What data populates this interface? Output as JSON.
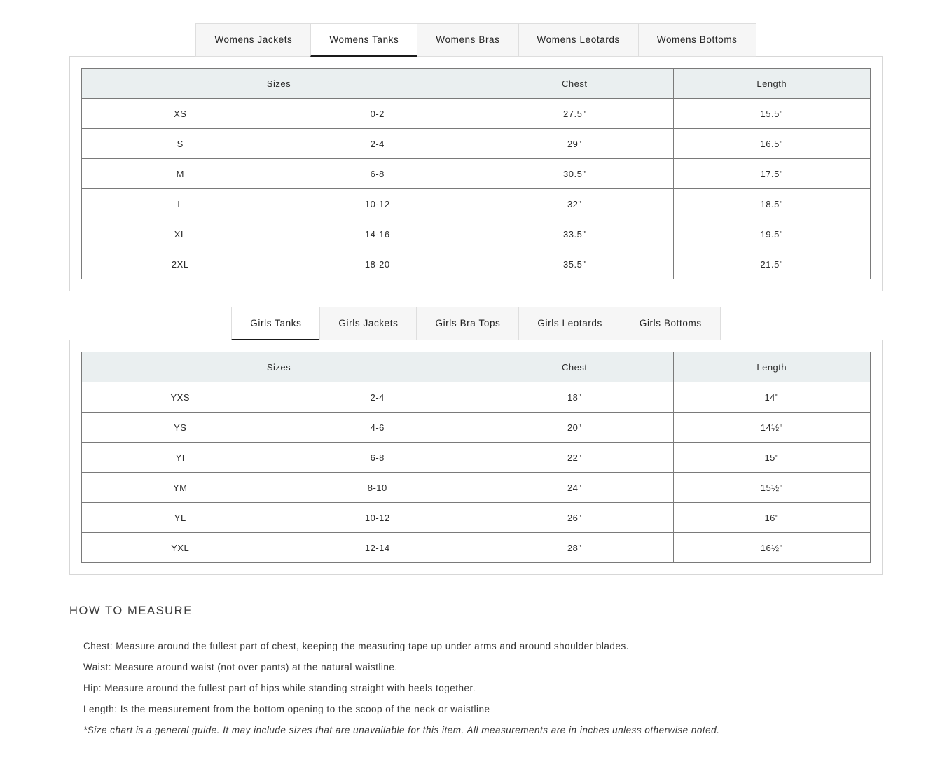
{
  "colors": {
    "header_cell_bg": "#eaeff0",
    "table_border": "#7a7a7a",
    "panel_border": "#d7d7d7",
    "tab_inactive_bg": "#f6f6f6",
    "tab_border": "#dedede",
    "tab_active_underline": "#1a1a1a",
    "text": "#2e2e2e"
  },
  "womens": {
    "tabs": [
      {
        "label": "Womens Jackets",
        "active": false
      },
      {
        "label": "Womens Tanks",
        "active": true
      },
      {
        "label": "Womens Bras",
        "active": false
      },
      {
        "label": "Womens Leotards",
        "active": false
      },
      {
        "label": "Womens Bottoms",
        "active": false
      }
    ],
    "table": {
      "headers": [
        "Sizes",
        "Chest",
        "Length"
      ],
      "rows": [
        [
          "XS",
          "0-2",
          "27.5\"",
          "15.5\""
        ],
        [
          "S",
          "2-4",
          "29\"",
          "16.5\""
        ],
        [
          "M",
          "6-8",
          "30.5\"",
          "17.5\""
        ],
        [
          "L",
          "10-12",
          "32\"",
          "18.5\""
        ],
        [
          "XL",
          "14-16",
          "33.5\"",
          "19.5\""
        ],
        [
          "2XL",
          "18-20",
          "35.5\"",
          "21.5\""
        ]
      ]
    }
  },
  "girls": {
    "tabs": [
      {
        "label": "Girls Tanks",
        "active": true
      },
      {
        "label": "Girls Jackets",
        "active": false
      },
      {
        "label": "Girls Bra Tops",
        "active": false
      },
      {
        "label": "Girls Leotards",
        "active": false
      },
      {
        "label": "Girls Bottoms",
        "active": false
      }
    ],
    "table": {
      "headers": [
        "Sizes",
        "Chest",
        "Length"
      ],
      "rows": [
        [
          "YXS",
          "2-4",
          "18\"",
          "14\""
        ],
        [
          "YS",
          "4-6",
          "20\"",
          "14½\""
        ],
        [
          "YI",
          "6-8",
          "22\"",
          "15\""
        ],
        [
          "YM",
          "8-10",
          "24\"",
          "15½\""
        ],
        [
          "YL",
          "10-12",
          "26\"",
          "16\""
        ],
        [
          "YXL",
          "12-14",
          "28\"",
          "16½\""
        ]
      ]
    }
  },
  "how_to_measure": {
    "title": "HOW TO MEASURE",
    "lines": [
      "Chest: Measure around the fullest part of chest, keeping the measuring tape up under arms and around shoulder blades.",
      "Waist: Measure around waist (not over pants) at the natural waistline.",
      "Hip: Measure around the fullest part of hips while standing straight with heels together.",
      "Length: Is the measurement from the bottom opening to the scoop of the neck or waistline"
    ],
    "note": "*Size chart is a general guide. It may include sizes that are unavailable for this item. All measurements are in inches unless otherwise noted."
  }
}
